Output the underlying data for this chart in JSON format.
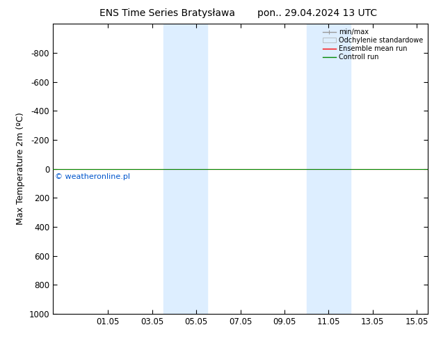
{
  "title_left": "ENS Time Series Bratysława",
  "title_right": "pon.. 29.04.2024 13 UTC",
  "ylabel": "Max Temperature 2m (ºC)",
  "ylim_top": -1000,
  "ylim_bottom": 1000,
  "yticks": [
    -800,
    -600,
    -400,
    -200,
    0,
    200,
    400,
    600,
    800,
    1000
  ],
  "xlim_start": -0.5,
  "xlim_end": 16.5,
  "xtick_positions": [
    2,
    4,
    6,
    8,
    10,
    12,
    14,
    16
  ],
  "xtick_labels": [
    "01.05",
    "03.05",
    "05.05",
    "07.05",
    "09.05",
    "11.05",
    "13.05",
    "15.05"
  ],
  "blue_bands": [
    {
      "xmin": 4.5,
      "xmax": 6.5
    },
    {
      "xmin": 11.0,
      "xmax": 13.0
    }
  ],
  "green_line_y": 0,
  "red_line_y": 0,
  "copyright_text": "© weatheronline.pl",
  "copyright_color": "#0055cc",
  "legend_labels": [
    "min/max",
    "Odchylenie standardowe",
    "Ensemble mean run",
    "Controll run"
  ],
  "legend_colors": [
    "#999999",
    "#bbccdd",
    "#ff0000",
    "#008800"
  ],
  "bg_color": "#ffffff",
  "band_color": "#ddeeff",
  "title_fontsize": 10,
  "axis_fontsize": 9,
  "tick_fontsize": 8.5,
  "copyright_fontsize": 8
}
